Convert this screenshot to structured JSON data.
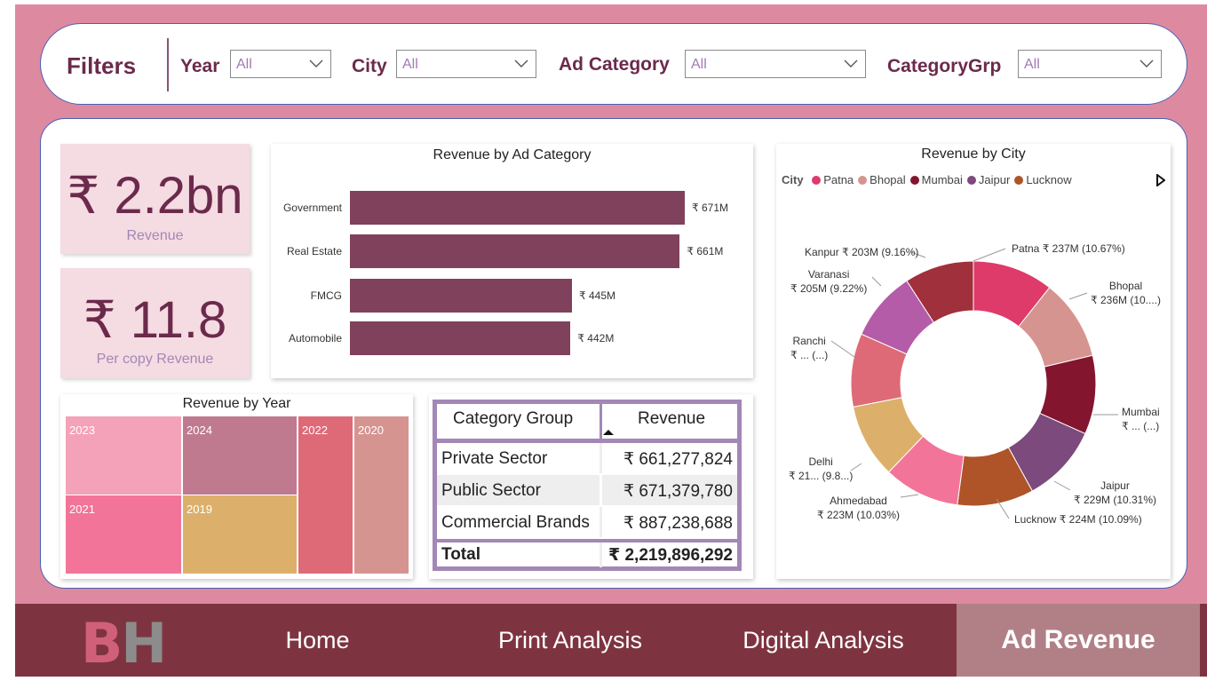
{
  "filters": {
    "title": "Filters",
    "items": [
      {
        "label": "Year",
        "value": "All"
      },
      {
        "label": "City",
        "value": "All"
      },
      {
        "label": "Ad Category",
        "value": "All"
      },
      {
        "label": "CategoryGrp",
        "value": "All"
      }
    ]
  },
  "kpis": [
    {
      "value": "₹ 2.2bn",
      "label": "Revenue"
    },
    {
      "value": "₹ 11.8",
      "label": "Per copy Revenue"
    }
  ],
  "table": {
    "headers": [
      "Category Group",
      "Revenue"
    ],
    "rows": [
      {
        "group": "Private Sector",
        "revenue": "₹ 661,277,824"
      },
      {
        "group": "Public Sector",
        "revenue": "₹ 671,379,780"
      },
      {
        "group": "Commercial Brands",
        "revenue": "₹ 887,238,688"
      }
    ],
    "total": {
      "group": "Total",
      "revenue": "₹ 2,219,896,292"
    }
  },
  "nav": {
    "logo_b": "B",
    "logo_h": "H",
    "items": [
      "Home",
      "Print Analysis",
      "Digital Analysis",
      "Ad Revenue"
    ],
    "active": "Ad Revenue"
  },
  "chart_data": [
    {
      "type": "bar",
      "title": "Revenue by Ad Category",
      "orientation": "horizontal",
      "categories": [
        "Government",
        "Real Estate",
        "FMCG",
        "Automobile"
      ],
      "values": [
        671,
        661,
        445,
        442
      ],
      "unit": "₹ M",
      "data_labels": [
        "₹ 671M",
        "₹ 661M",
        "₹ 445M",
        "₹ 442M"
      ],
      "bar_color": "#80415c"
    },
    {
      "type": "treemap",
      "title": "Revenue by Year",
      "categories": [
        "2023",
        "2024",
        "2021",
        "2019",
        "2022",
        "2020"
      ],
      "colors": {
        "2023": "#f4a2b9",
        "2024": "#c07a90",
        "2021": "#f37499",
        "2019": "#dcb06b",
        "2022": "#de6a78",
        "2020": "#d69490"
      }
    },
    {
      "type": "pie",
      "variant": "donut",
      "title": "Revenue by City",
      "legend_title": "City",
      "legend_items": [
        "Patna",
        "Bhopal",
        "Mumbai",
        "Jaipur",
        "Lucknow"
      ],
      "legend_position": "top-left",
      "slices": [
        {
          "name": "Patna",
          "percent": 10.67,
          "color": "#de3a6a",
          "label": [
            "Patna ₹ 237M (10.67%)"
          ]
        },
        {
          "name": "Bhopal",
          "percent": 10.64,
          "color": "#d69490",
          "label": [
            "Bhopal",
            "₹ 236M (10....)"
          ]
        },
        {
          "name": "Mumbai",
          "percent": 10.4,
          "color": "#84152f",
          "label": [
            "Mumbai",
            "₹ ... (...)"
          ]
        },
        {
          "name": "Jaipur",
          "percent": 10.31,
          "color": "#7c4a7c",
          "label": [
            "Jaipur",
            "₹ 229M (10.31%)"
          ]
        },
        {
          "name": "Lucknow",
          "percent": 10.09,
          "color": "#ae5428",
          "label": [
            "Lucknow ₹ 224M (10.09%)"
          ]
        },
        {
          "name": "Ahmedabad",
          "percent": 10.03,
          "color": "#f37499",
          "label": [
            "Ahmedabad",
            "₹ 223M (10.03%)"
          ]
        },
        {
          "name": "Delhi",
          "percent": 9.8,
          "color": "#dcb06b",
          "label": [
            "Delhi",
            "₹ 21... (9.8...)"
          ]
        },
        {
          "name": "Ranchi",
          "percent": 9.68,
          "color": "#de6a78",
          "label": [
            "Ranchi",
            "₹ ... (...)"
          ]
        },
        {
          "name": "Varanasi",
          "percent": 9.22,
          "color": "#b45ca8",
          "label": [
            "Varanasi",
            "₹ 205M (9.22%)"
          ]
        },
        {
          "name": "Kanpur",
          "percent": 9.16,
          "color": "#a0303c",
          "label": [
            "Kanpur ₹ 203M (9.16%)"
          ]
        }
      ]
    }
  ]
}
